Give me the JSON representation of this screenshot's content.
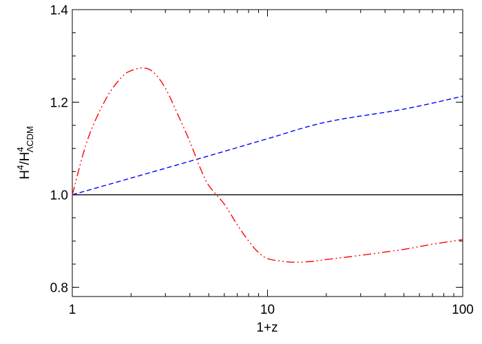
{
  "chart_data": {
    "type": "line",
    "xscale": "log",
    "xlim": [
      1,
      100
    ],
    "ylim": [
      0.78,
      1.4
    ],
    "xlabel": "1+z",
    "ylabel": {
      "base": "H",
      "sup1": "4",
      "slash": "/H",
      "sup2": "4",
      "sub": "ΛCDM"
    },
    "x_ticks": [
      {
        "value": 1,
        "label": "1"
      },
      {
        "value": 10,
        "label": "10"
      },
      {
        "value": 100,
        "label": "100"
      }
    ],
    "y_ticks": [
      {
        "value": 0.8,
        "label": "0.8"
      },
      {
        "value": 1.0,
        "label": "1.0"
      },
      {
        "value": 1.2,
        "label": "1.2"
      },
      {
        "value": 1.4,
        "label": "1.4"
      }
    ],
    "series": [
      {
        "color": "#000000",
        "style": "solid",
        "x": [
          1,
          100
        ],
        "y": [
          1.0,
          1.0
        ]
      },
      {
        "color": "#0000ff",
        "style": "dashed",
        "x": [
          1,
          2,
          5,
          10,
          20,
          50,
          100
        ],
        "y": [
          1.0,
          1.036,
          1.084,
          1.121,
          1.157,
          1.185,
          1.213
        ]
      },
      {
        "color": "#ff0000",
        "style": "dash-dot-dot",
        "x": [
          1,
          1.2,
          1.5,
          1.8,
          2.0,
          2.3,
          2.6,
          3.0,
          3.5,
          4.0,
          4.5,
          5.0,
          6.0,
          7.0,
          8.0,
          9.0,
          10,
          12,
          14,
          17,
          20,
          30,
          50,
          70,
          100
        ],
        "y": [
          1.0,
          1.12,
          1.21,
          1.255,
          1.268,
          1.274,
          1.265,
          1.23,
          1.17,
          1.115,
          1.06,
          1.02,
          0.98,
          0.935,
          0.9,
          0.875,
          0.862,
          0.856,
          0.854,
          0.856,
          0.86,
          0.869,
          0.882,
          0.893,
          0.903
        ]
      }
    ]
  }
}
